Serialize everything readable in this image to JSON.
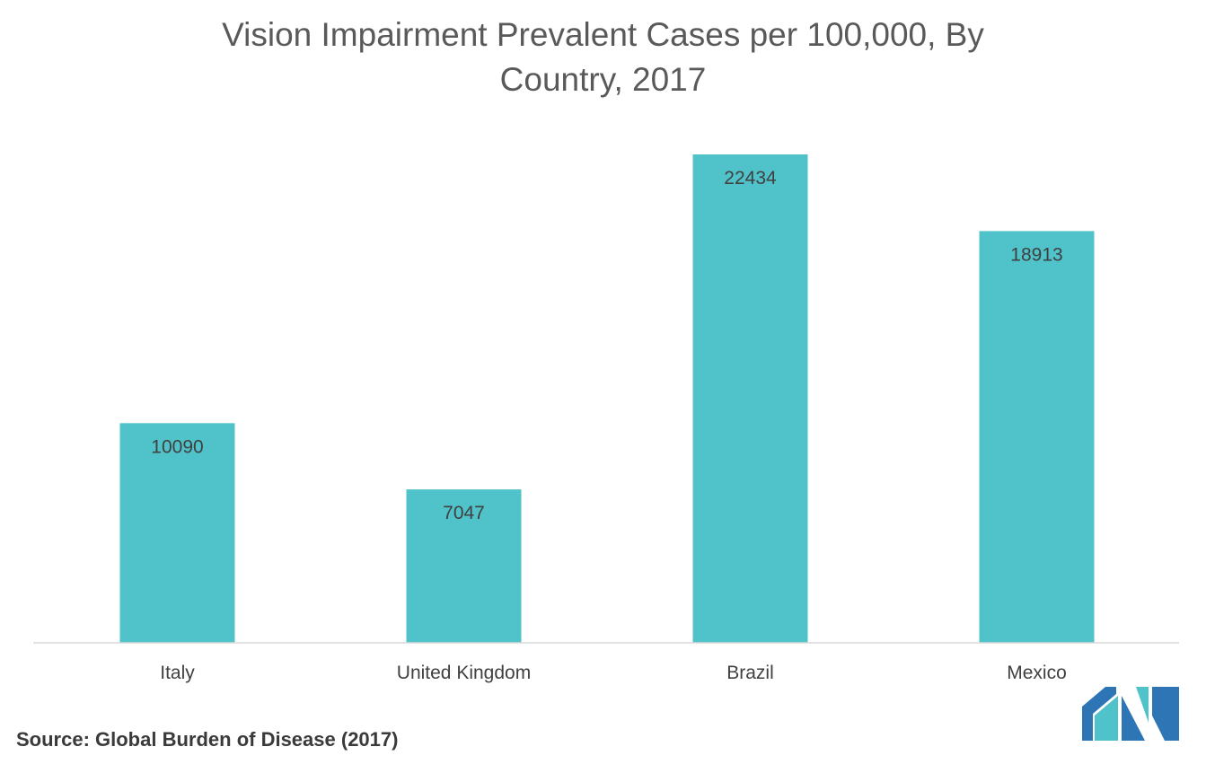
{
  "chart_data": {
    "type": "bar",
    "title_line1": "Vision Impairment Prevalent Cases per 100,000, By",
    "title_line2": "Country, 2017",
    "categories": [
      "Italy",
      "United Kingdom",
      "Brazil",
      "Mexico"
    ],
    "values": [
      10090,
      7047,
      22434,
      18913
    ],
    "ylim": [
      0,
      22434
    ],
    "grid": false,
    "legend": "none",
    "bar_color": "#4FC3C9",
    "axis_color": "#D9D9D9"
  },
  "source": "Source: Global Burden of Disease (2017)",
  "logo": {
    "icon": "mordor-intelligence-logo",
    "color_dark": "#2E75B6",
    "color_light": "#4FC3C9"
  }
}
